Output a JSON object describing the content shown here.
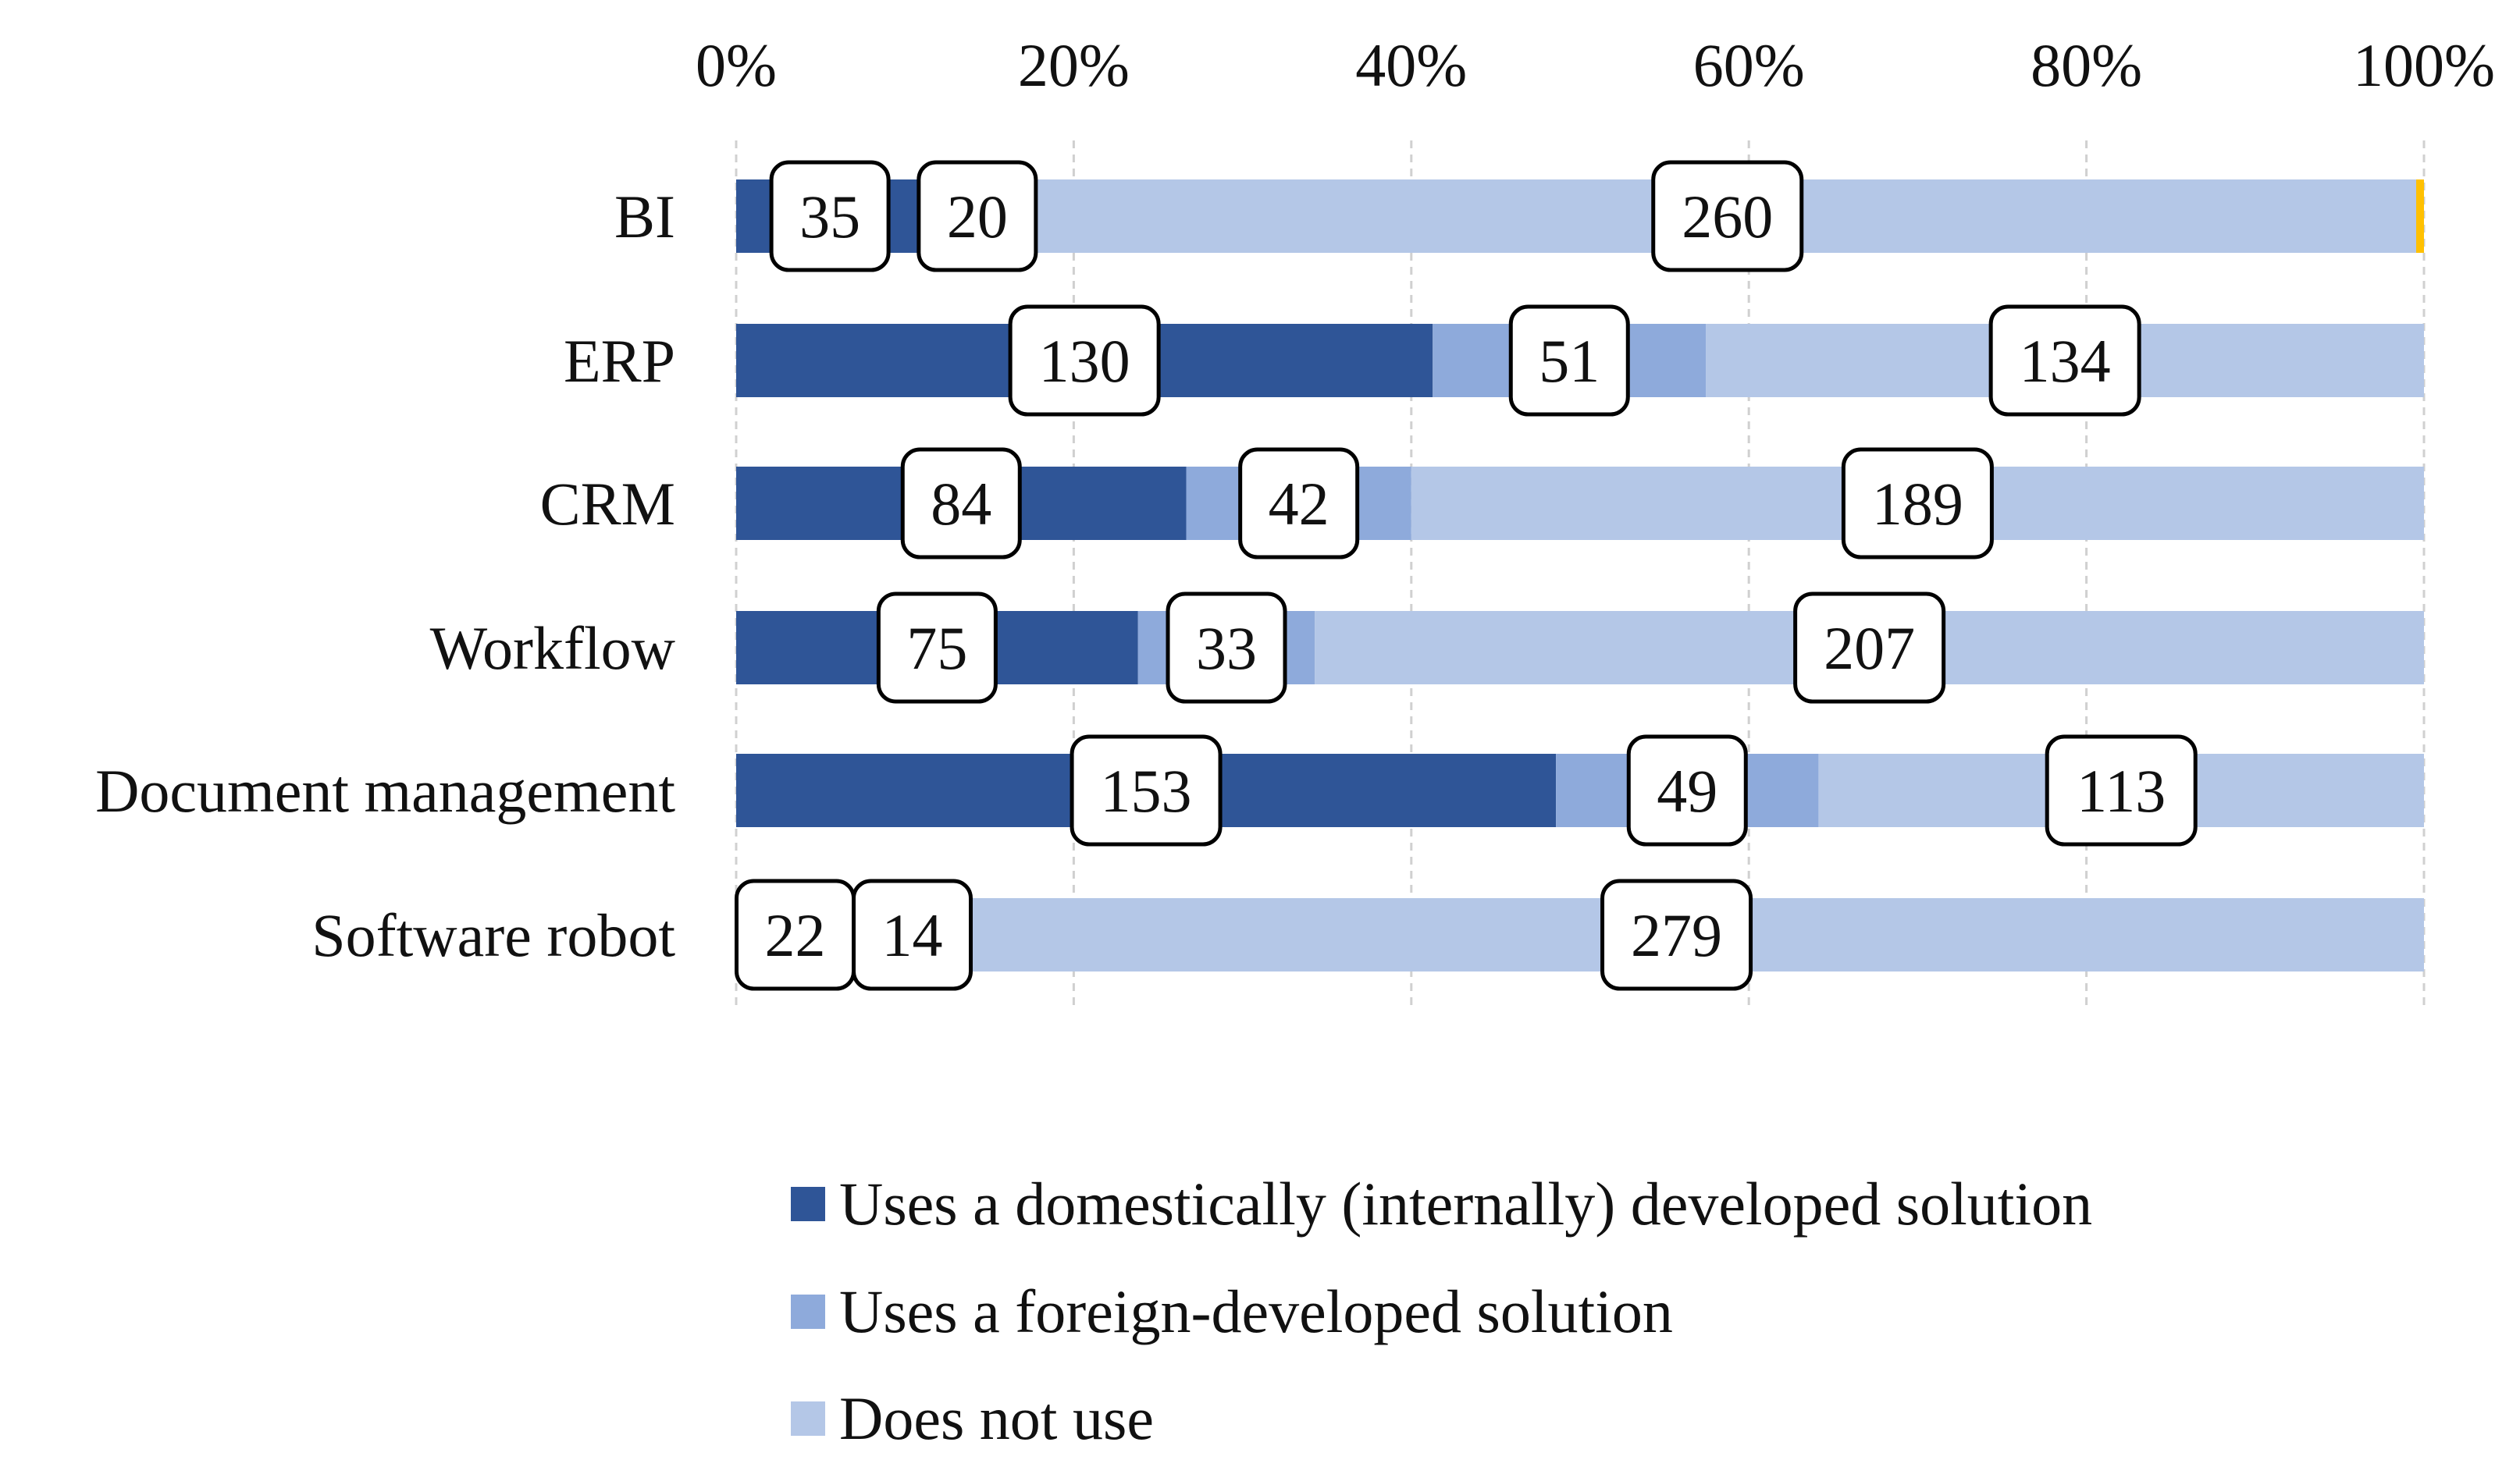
{
  "chart_data": {
    "type": "bar",
    "orientation": "horizontal",
    "stacked": "percent",
    "categories": [
      "BI",
      "ERP",
      "CRM",
      "Workflow",
      "Document management",
      "Software robot"
    ],
    "series": [
      {
        "name": "Uses a domestically (internally) developed solution",
        "color": "#2F5597",
        "values": [
          35,
          130,
          84,
          75,
          153,
          22
        ]
      },
      {
        "name": "Uses a foreign-developed solution",
        "color": "#8EAADB",
        "values": [
          20,
          51,
          42,
          33,
          49,
          14
        ]
      },
      {
        "name": "Does not use",
        "color": "#B4C7E7",
        "values": [
          260,
          134,
          189,
          207,
          113,
          279
        ]
      }
    ],
    "x_ticks": [
      "0%",
      "20%",
      "40%",
      "60%",
      "80%",
      "100%"
    ],
    "xlim": [
      0,
      100
    ],
    "x_axis_position": "top",
    "grid": true,
    "legend_position": "bottom",
    "accent_color": "#FFC000"
  }
}
